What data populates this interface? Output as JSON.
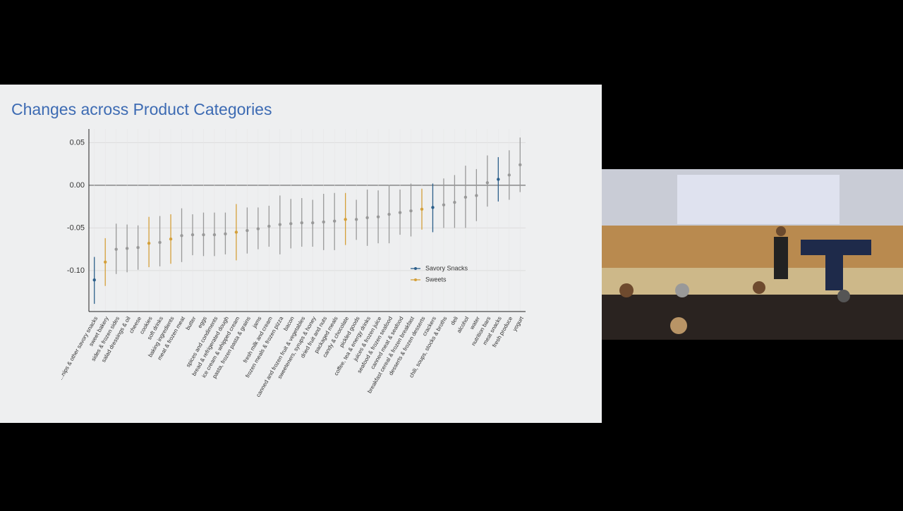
{
  "chart_data": {
    "type": "errorbar",
    "title": "Changes across Product Categories",
    "categories": [
      "...nips & other savory snacks",
      "sweet bakery",
      "sides & frozen sides",
      "salad dressings & oil",
      "cheese",
      "cookies",
      "soft drinks",
      "baking ingredients",
      "meat & frozen meat",
      "butter",
      "eggs",
      "spices and condiments",
      "bread & refrigerated dough",
      "ice cream & whipped cream",
      "pasta, frozen pasta & grains",
      "jams",
      "fresh milk and cream",
      "frozen meals & frozen pizza",
      "bacon",
      "canned and frozen fruit & vegetables",
      "sweeteners, syrups & honey",
      "dried fruit and nuts",
      "packaged meals",
      "candy & chocolate",
      "pickled goods",
      "coffee, tea & energy drinks",
      "juices & frozen juice",
      "seafood & frozen seafood",
      "canned meat & seafood",
      "breakfast cereal & frozen breakfast",
      "desserts & frozen desserts",
      "crackers",
      "chili, soups, stocks & broths",
      "deli",
      "alcohol",
      "water",
      "nutrition bars",
      "meat snacks",
      "fresh produce",
      "yogurt"
    ],
    "values": [
      -0.111,
      -0.09,
      -0.075,
      -0.074,
      -0.073,
      -0.068,
      -0.067,
      -0.063,
      -0.059,
      -0.058,
      -0.058,
      -0.058,
      -0.057,
      -0.055,
      -0.053,
      -0.051,
      -0.048,
      -0.046,
      -0.045,
      -0.044,
      -0.044,
      -0.043,
      -0.042,
      -0.04,
      -0.04,
      -0.038,
      -0.037,
      -0.034,
      -0.032,
      -0.03,
      -0.028,
      -0.026,
      -0.023,
      -0.02,
      -0.014,
      -0.012,
      0.003,
      0.007,
      0.012,
      0.024
    ],
    "lower": [
      -0.139,
      -0.118,
      -0.104,
      -0.102,
      -0.099,
      -0.096,
      -0.095,
      -0.092,
      -0.09,
      -0.082,
      -0.083,
      -0.083,
      -0.081,
      -0.088,
      -0.08,
      -0.075,
      -0.072,
      -0.081,
      -0.074,
      -0.072,
      -0.072,
      -0.076,
      -0.076,
      -0.07,
      -0.064,
      -0.071,
      -0.068,
      -0.068,
      -0.058,
      -0.06,
      -0.052,
      -0.055,
      -0.05,
      -0.05,
      -0.05,
      -0.042,
      -0.025,
      -0.019,
      -0.017,
      -0.008
    ],
    "upper": [
      -0.084,
      -0.062,
      -0.045,
      -0.046,
      -0.047,
      -0.037,
      -0.036,
      -0.034,
      -0.027,
      -0.034,
      -0.032,
      -0.032,
      -0.032,
      -0.022,
      -0.026,
      -0.026,
      -0.024,
      -0.012,
      -0.016,
      -0.015,
      -0.017,
      -0.01,
      -0.009,
      -0.009,
      -0.017,
      -0.005,
      -0.006,
      0.0,
      -0.005,
      0.002,
      -0.004,
      0.002,
      0.008,
      0.012,
      0.023,
      0.019,
      0.035,
      0.033,
      0.041,
      0.056
    ],
    "point_colors": [
      "#2c5f8a",
      "#d4a03a",
      "#999999",
      "#999999",
      "#999999",
      "#d4a03a",
      "#999999",
      "#d4a03a",
      "#999999",
      "#999999",
      "#999999",
      "#999999",
      "#999999",
      "#d4a03a",
      "#999999",
      "#999999",
      "#999999",
      "#999999",
      "#999999",
      "#999999",
      "#999999",
      "#999999",
      "#999999",
      "#d4a03a",
      "#999999",
      "#999999",
      "#999999",
      "#999999",
      "#999999",
      "#999999",
      "#d4a03a",
      "#2c5f8a",
      "#999999",
      "#999999",
      "#999999",
      "#999999",
      "#999999",
      "#2c5f8a",
      "#999999",
      "#999999"
    ],
    "legend": [
      {
        "name": "Savory Snacks",
        "color": "#2c5f8a"
      },
      {
        "name": "Sweets",
        "color": "#d4a03a"
      }
    ],
    "ylim": [
      -0.148,
      0.066
    ],
    "yticks": [
      {
        "value": -0.1,
        "label": "-0.10"
      },
      -0.05,
      {
        "value": 0,
        "label": "0.00"
      },
      0.05
    ],
    "grid": true
  }
}
